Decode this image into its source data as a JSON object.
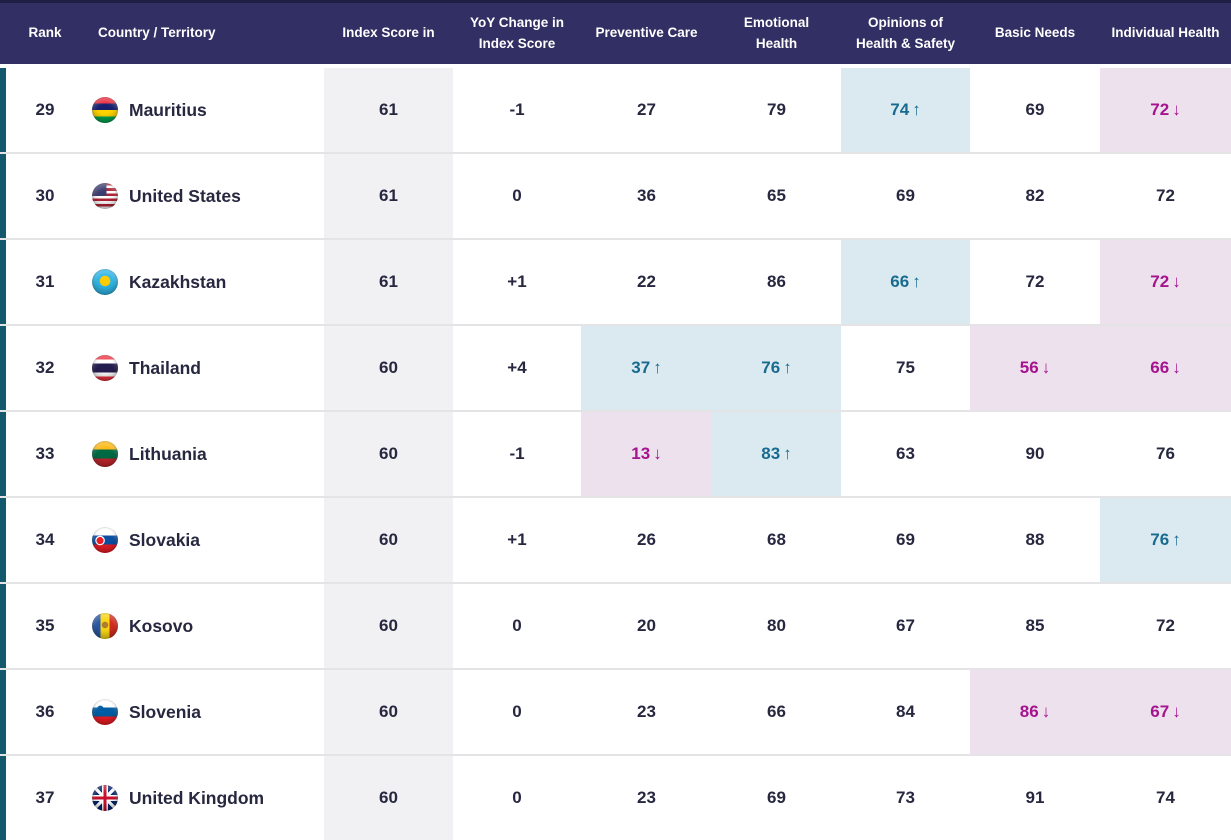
{
  "chart_data": {
    "type": "table",
    "columns": [
      "Rank",
      "Country / Territory",
      "Index Score in",
      "YoY Change in Index Score",
      "Preventive Care",
      "Emotional Health",
      "Opinions of Health & Safety",
      "Basic Needs",
      "Individual Health"
    ],
    "rows": [
      {
        "rank": "29",
        "country": "Mauritius",
        "flag": "mauritius-flag",
        "index_score": "61",
        "yoy_change": "-1",
        "metrics": [
          {
            "value": "27",
            "trend": null
          },
          {
            "value": "79",
            "trend": null
          },
          {
            "value": "74",
            "trend": "up"
          },
          {
            "value": "69",
            "trend": null
          },
          {
            "value": "72",
            "trend": "down"
          }
        ]
      },
      {
        "rank": "30",
        "country": "United States",
        "flag": "united-states-flag",
        "index_score": "61",
        "yoy_change": "0",
        "metrics": [
          {
            "value": "36",
            "trend": null
          },
          {
            "value": "65",
            "trend": null
          },
          {
            "value": "69",
            "trend": null
          },
          {
            "value": "82",
            "trend": null
          },
          {
            "value": "72",
            "trend": null
          }
        ]
      },
      {
        "rank": "31",
        "country": "Kazakhstan",
        "flag": "kazakhstan-flag",
        "index_score": "61",
        "yoy_change": "+1",
        "metrics": [
          {
            "value": "22",
            "trend": null
          },
          {
            "value": "86",
            "trend": null
          },
          {
            "value": "66",
            "trend": "up"
          },
          {
            "value": "72",
            "trend": null
          },
          {
            "value": "72",
            "trend": "down"
          }
        ]
      },
      {
        "rank": "32",
        "country": "Thailand",
        "flag": "thailand-flag",
        "index_score": "60",
        "yoy_change": "+4",
        "metrics": [
          {
            "value": "37",
            "trend": "up"
          },
          {
            "value": "76",
            "trend": "up"
          },
          {
            "value": "75",
            "trend": null
          },
          {
            "value": "56",
            "trend": "down"
          },
          {
            "value": "66",
            "trend": "down"
          }
        ]
      },
      {
        "rank": "33",
        "country": "Lithuania",
        "flag": "lithuania-flag",
        "index_score": "60",
        "yoy_change": "-1",
        "metrics": [
          {
            "value": "13",
            "trend": "down"
          },
          {
            "value": "83",
            "trend": "up"
          },
          {
            "value": "63",
            "trend": null
          },
          {
            "value": "90",
            "trend": null
          },
          {
            "value": "76",
            "trend": null
          }
        ]
      },
      {
        "rank": "34",
        "country": "Slovakia",
        "flag": "slovakia-flag",
        "index_score": "60",
        "yoy_change": "+1",
        "metrics": [
          {
            "value": "26",
            "trend": null
          },
          {
            "value": "68",
            "trend": null
          },
          {
            "value": "69",
            "trend": null
          },
          {
            "value": "88",
            "trend": null
          },
          {
            "value": "76",
            "trend": "up"
          }
        ]
      },
      {
        "rank": "35",
        "country": "Kosovo",
        "flag": "kosovo-flag",
        "index_score": "60",
        "yoy_change": "0",
        "metrics": [
          {
            "value": "20",
            "trend": null
          },
          {
            "value": "80",
            "trend": null
          },
          {
            "value": "67",
            "trend": null
          },
          {
            "value": "85",
            "trend": null
          },
          {
            "value": "72",
            "trend": null
          }
        ]
      },
      {
        "rank": "36",
        "country": "Slovenia",
        "flag": "slovenia-flag",
        "index_score": "60",
        "yoy_change": "0",
        "metrics": [
          {
            "value": "23",
            "trend": null
          },
          {
            "value": "66",
            "trend": null
          },
          {
            "value": "84",
            "trend": null
          },
          {
            "value": "86",
            "trend": "down"
          },
          {
            "value": "67",
            "trend": "down"
          }
        ]
      },
      {
        "rank": "37",
        "country": "United Kingdom",
        "flag": "united-kingdom-flag",
        "index_score": "60",
        "yoy_change": "0",
        "metrics": [
          {
            "value": "23",
            "trend": null
          },
          {
            "value": "69",
            "trend": null
          },
          {
            "value": "73",
            "trend": null
          },
          {
            "value": "91",
            "trend": null
          },
          {
            "value": "74",
            "trend": null
          }
        ]
      }
    ]
  },
  "icons": {
    "up_arrow": "↑",
    "down_arrow": "↓"
  },
  "colors": {
    "header_bg": "#312f63",
    "accent_bar": "#14586b",
    "text": "#272740",
    "up_text": "#186b8f",
    "up_bg": "#dbeaf1",
    "down_text": "#a5138e",
    "down_bg": "#ece1ec",
    "index_col_bg": "#f1f1f3",
    "separator": "#e4e4e6"
  }
}
